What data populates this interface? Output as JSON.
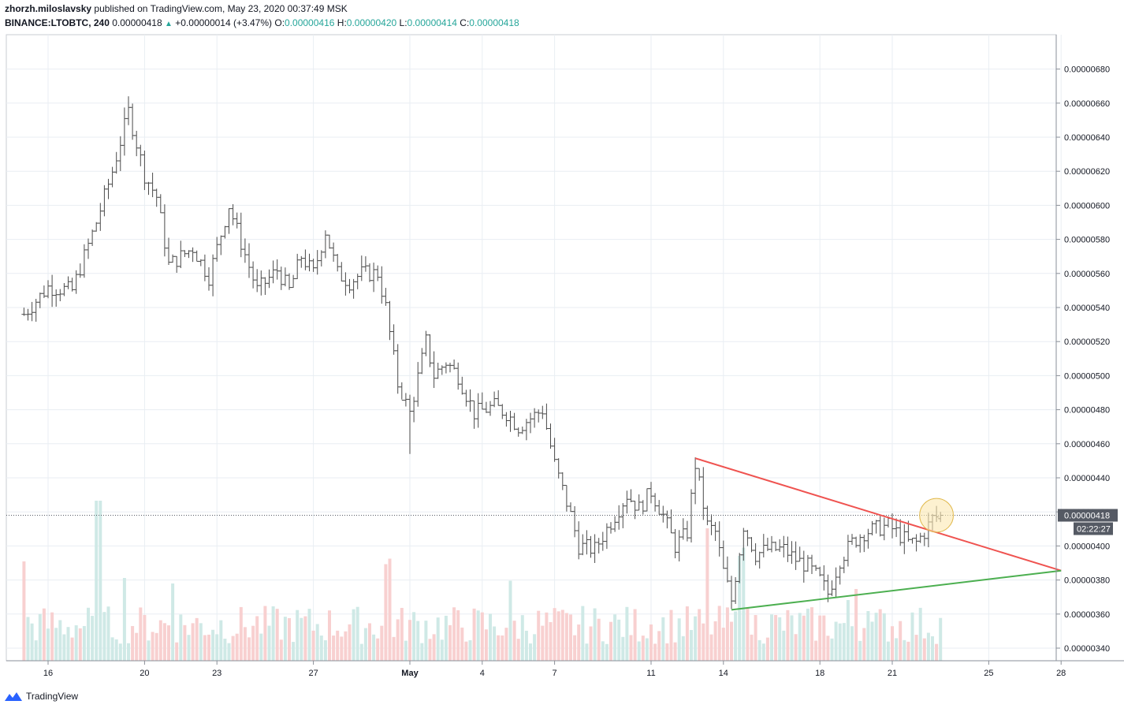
{
  "header": {
    "author": "zhorzh.miloslavsky",
    "published_text": "published on TradingView.com, May 23, 2020 00:37:49 MSK",
    "symbol": "BINANCE:LTOBTC, 240",
    "last": "0.00000418",
    "change": "+0.00000014 (+3.47%)",
    "o_label": "O:",
    "o_value": "0.00000416",
    "h_label": "H:",
    "h_value": "0.00000420",
    "l_label": "L:",
    "l_value": "0.00000414",
    "c_label": "C:",
    "c_value": "0.00000418"
  },
  "footer": {
    "brand": "TradingView"
  },
  "colors": {
    "bars": "#4a4a4a",
    "grid": "#e9eef3",
    "vol_up": "#cfe9e6",
    "vol_down": "#f8d0d0",
    "resistance": "#ef5350",
    "support": "#4caf50",
    "highlight_fill": "#fbe7b0",
    "highlight_stroke": "#e0b84a",
    "price_badge": "#555a64"
  },
  "chart_data": {
    "type": "ohlc",
    "x_unit": "date (2020)",
    "ylim": [
      3.34e-06,
      7.02e-06
    ],
    "x_ticks": [
      {
        "label": "16",
        "day": 16
      },
      {
        "label": "20",
        "day": 20
      },
      {
        "label": "23",
        "day": 23
      },
      {
        "label": "27",
        "day": 27
      },
      {
        "label": "May",
        "day": 31,
        "bold": true
      },
      {
        "label": "4",
        "day": 34
      },
      {
        "label": "7",
        "day": 37
      },
      {
        "label": "11",
        "day": 41
      },
      {
        "label": "14",
        "day": 44
      },
      {
        "label": "18",
        "day": 48
      },
      {
        "label": "21",
        "day": 51
      },
      {
        "label": "25",
        "day": 55
      },
      {
        "label": "28",
        "day": 58
      }
    ],
    "y_ticks": [
      "0.00000340",
      "0.00000360",
      "0.00000380",
      "0.00000400",
      "0.00000420",
      "0.00000440",
      "0.00000460",
      "0.00000480",
      "0.00000500",
      "0.00000520",
      "0.00000540",
      "0.00000560",
      "0.00000580",
      "0.00000600",
      "0.00000620",
      "0.00000640",
      "0.00000660",
      "0.00000680"
    ],
    "current_price": "0.00000418",
    "countdown": "02:22:27",
    "anchors": [
      [
        "Apr 15 00:00",
        536
      ],
      [
        "Apr 16 00:00",
        552
      ],
      [
        "Apr 17 00:00",
        550
      ],
      [
        "Apr 18 00:00",
        590
      ],
      [
        "Apr 18 16:00",
        620
      ],
      [
        "Apr 19 08:00",
        655
      ],
      [
        "Apr 20 00:00",
        618
      ],
      [
        "Apr 20 12:00",
        605
      ],
      [
        "Apr 21 00:00",
        565
      ],
      [
        "Apr 22 00:00",
        575
      ],
      [
        "Apr 22 16:00",
        558
      ],
      [
        "Apr 23 12:00",
        600
      ],
      [
        "Apr 24 00:00",
        578
      ],
      [
        "Apr 24 16:00",
        550
      ],
      [
        "Apr 25 12:00",
        562
      ],
      [
        "Apr 26 00:00",
        550
      ],
      [
        "Apr 26 12:00",
        570
      ],
      [
        "Apr 27 00:00",
        560
      ],
      [
        "Apr 27 12:00",
        585
      ],
      [
        "Apr 28 00:00",
        560
      ],
      [
        "Apr 28 12:00",
        555
      ],
      [
        "Apr 29 00:00",
        560
      ],
      [
        "Apr 29 16:00",
        560
      ],
      [
        "Apr 30 00:00",
        540
      ],
      [
        "Apr 30 12:00",
        495
      ],
      [
        "May 1 00:00",
        478
      ],
      [
        "May 1 16:00",
        520
      ],
      [
        "May 2 00:00",
        500
      ],
      [
        "May 2 12:00",
        508
      ],
      [
        "May 3 00:00",
        500
      ],
      [
        "May 3 16:00",
        478
      ],
      [
        "May 4 12:00",
        482
      ],
      [
        "May 5 00:00",
        478
      ],
      [
        "May 5 12:00",
        470
      ],
      [
        "May 6 00:00",
        475
      ],
      [
        "May 6 12:00",
        480
      ],
      [
        "May 7 00:00",
        448
      ],
      [
        "May 7 16:00",
        418
      ],
      [
        "May 8 00:00",
        400
      ],
      [
        "May 8 16:00",
        398
      ],
      [
        "May 9 12:00",
        418
      ],
      [
        "May 10 00:00",
        430
      ],
      [
        "May 10 12:00",
        422
      ],
      [
        "May 11 00:00",
        432
      ],
      [
        "May 11 12:00",
        418
      ],
      [
        "May 12 00:00",
        400
      ],
      [
        "May 12 12:00",
        408
      ],
      [
        "May 12 20:00",
        448
      ],
      [
        "May 13 08:00",
        412
      ],
      [
        "May 13 16:00",
        408
      ],
      [
        "May 14 00:00",
        385
      ],
      [
        "May 14 08:00",
        368
      ],
      [
        "May 14 20:00",
        412
      ],
      [
        "May 15 08:00",
        395
      ],
      [
        "May 15 20:00",
        398
      ],
      [
        "May 16 12:00",
        398
      ],
      [
        "May 17 00:00",
        392
      ],
      [
        "May 17 12:00",
        388
      ],
      [
        "May 18 00:00",
        380
      ],
      [
        "May 18 08:00",
        372
      ],
      [
        "May 18 20:00",
        392
      ],
      [
        "May 19 08:00",
        402
      ],
      [
        "May 19 20:00",
        408
      ],
      [
        "May 20 08:00",
        410
      ],
      [
        "May 20 20:00",
        412
      ],
      [
        "May 21 04:00",
        408
      ],
      [
        "May 21 16:00",
        402
      ],
      [
        "May 22 00:00",
        402
      ],
      [
        "May 22 08:00",
        408
      ],
      [
        "May 22 16:00",
        416
      ],
      [
        "May 23 00:00",
        418
      ]
    ],
    "spikes": [
      [
        "Apr 19 08:00",
        664,
        null
      ],
      [
        "Apr 30 16:00",
        null,
        486
      ],
      [
        "May 1 00:00",
        null,
        454
      ],
      [
        "May 12 20:00",
        452,
        null
      ],
      [
        "May 14 08:00",
        null,
        363
      ],
      [
        "May 8 16:00",
        null,
        390
      ]
    ],
    "volume_spikes": [
      [
        "Apr 18 00:00",
        58
      ],
      [
        "Apr 18 04:00",
        58
      ],
      [
        "Apr 15 00:00",
        36
      ],
      [
        "Apr 19 04:00",
        30
      ],
      [
        "Apr 21 04:00",
        28
      ],
      [
        "Apr 30 00:00",
        35
      ],
      [
        "Apr 30 04:00",
        37
      ],
      [
        "May 5 04:00",
        29
      ],
      [
        "May 13 08:00",
        48
      ],
      [
        "May 14 16:00",
        38
      ],
      [
        "May 14 20:00",
        41
      ],
      [
        "May 19 04:00",
        22
      ],
      [
        "May 19 12:00",
        26
      ],
      [
        "May 20 00:00",
        18
      ]
    ],
    "trendlines": [
      {
        "name": "resistance",
        "from": [
          "May 12 20:00",
          451.5
        ],
        "to": [
          "May 28 00:00",
          385.5
        ]
      },
      {
        "name": "support",
        "from": [
          "May 14 08:00",
          362.5
        ],
        "to": [
          "May 28 00:00",
          385.5
        ]
      }
    ],
    "highlight": {
      "center": [
        "May 22 20:00",
        418
      ],
      "radius_days": 0.7
    }
  }
}
